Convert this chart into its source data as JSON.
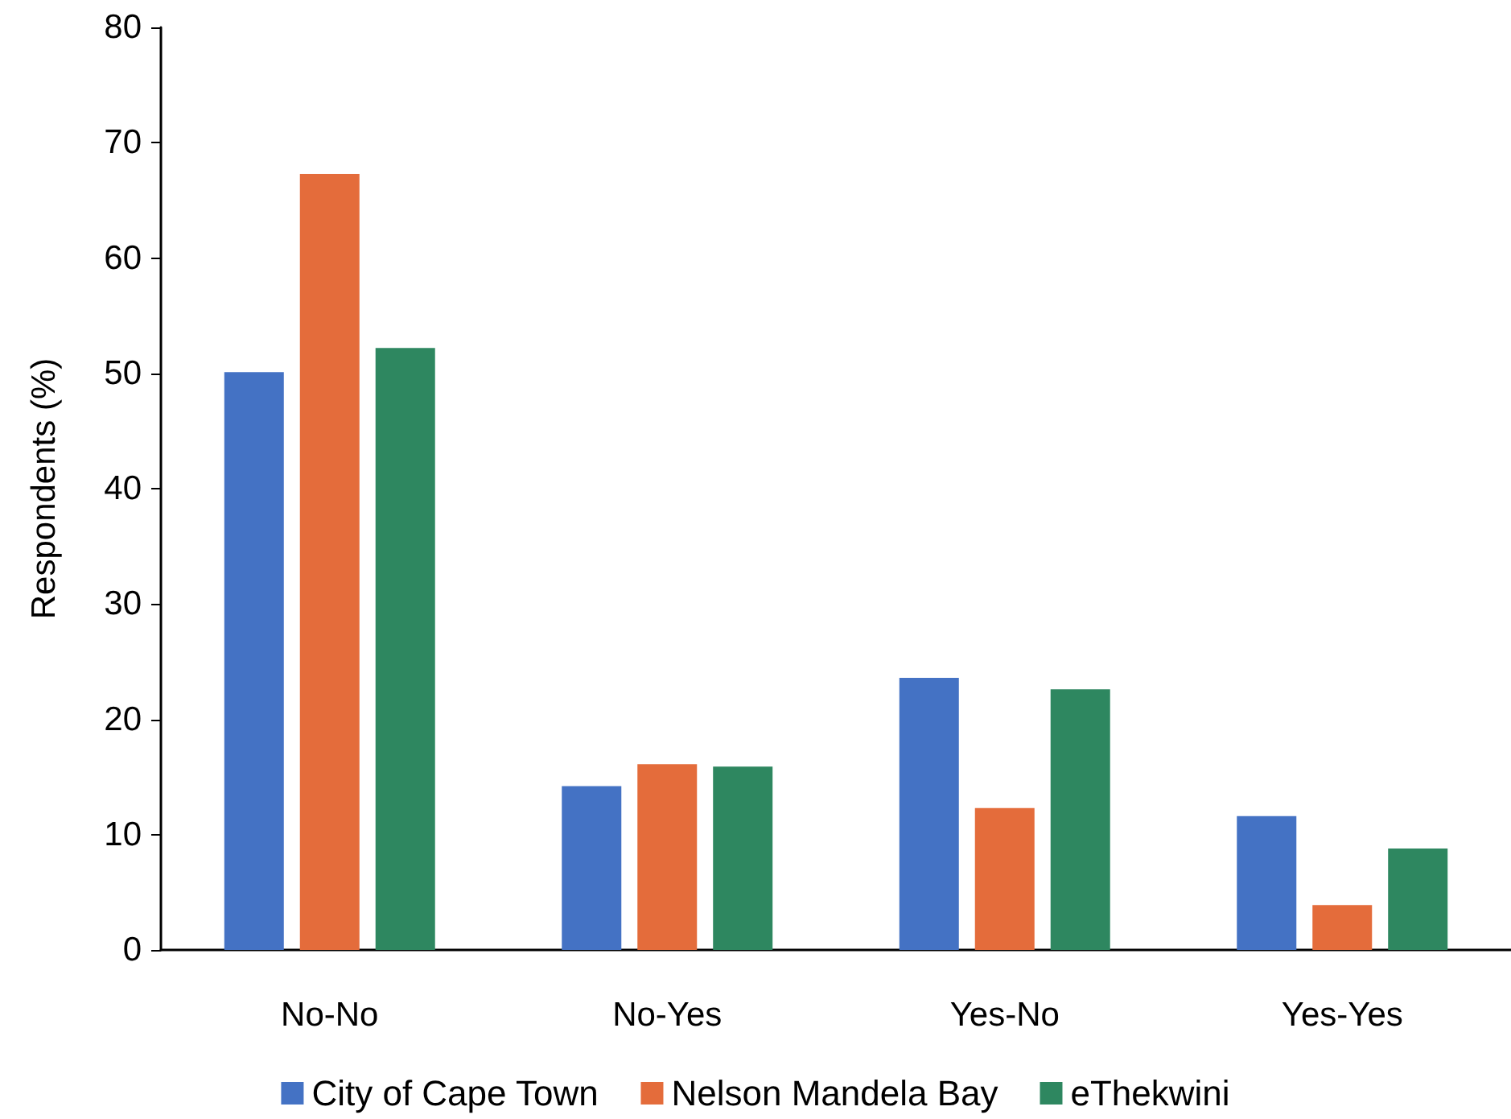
{
  "chart_data": {
    "type": "bar",
    "ylabel": "Respondents (%)",
    "categories": [
      "No-No",
      "No-Yes",
      "Yes-No",
      "Yes-Yes"
    ],
    "series": [
      {
        "name": "City of Cape Town",
        "color": "#4472c4",
        "values": [
          50.1,
          14.2,
          23.6,
          11.6
        ]
      },
      {
        "name": "Nelson Mandela Bay",
        "color": "#e46c3b",
        "values": [
          67.3,
          16.1,
          12.3,
          3.9
        ]
      },
      {
        "name": "eThekwini",
        "color": "#2e8760",
        "values": [
          52.2,
          15.9,
          22.6,
          8.8
        ]
      }
    ],
    "ylim": [
      0,
      80
    ],
    "yticks": [
      0,
      10,
      20,
      30,
      40,
      50,
      60,
      70,
      80
    ],
    "grid": false,
    "legend": "bottom"
  }
}
